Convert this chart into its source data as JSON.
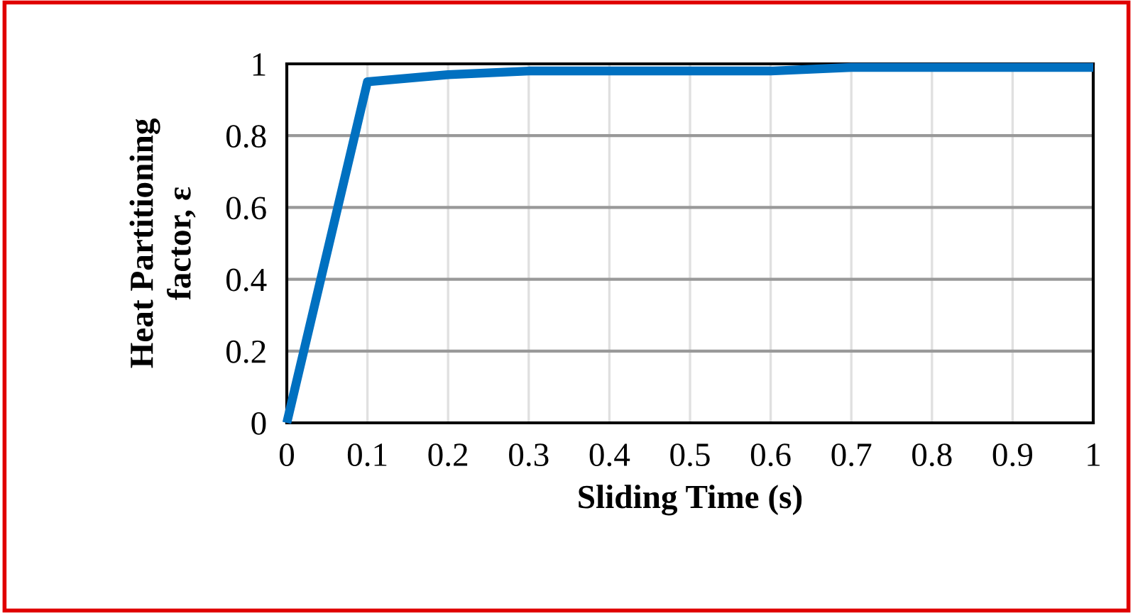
{
  "chart_data": {
    "type": "line",
    "xlabel": "Sliding Time (s)",
    "ylabel": "Heat Partitioning\nfactor, ε",
    "x": [
      0,
      0.1,
      0.2,
      0.3,
      0.4,
      0.5,
      0.6,
      0.7,
      0.8,
      0.9,
      1
    ],
    "series": [
      {
        "color": "#0070c0",
        "values": [
          0,
          0.95,
          0.97,
          0.98,
          0.98,
          0.98,
          0.98,
          0.99,
          0.99,
          0.99,
          0.99
        ]
      }
    ],
    "xlim": [
      0,
      1
    ],
    "ylim": [
      0,
      1
    ],
    "xticks": [
      0,
      0.1,
      0.2,
      0.3,
      0.4,
      0.5,
      0.6,
      0.7,
      0.8,
      0.9,
      1
    ],
    "yticks": [
      0,
      0.2,
      0.4,
      0.6,
      0.8,
      1
    ],
    "grid": true,
    "marker": "none",
    "line_style": "solid"
  }
}
